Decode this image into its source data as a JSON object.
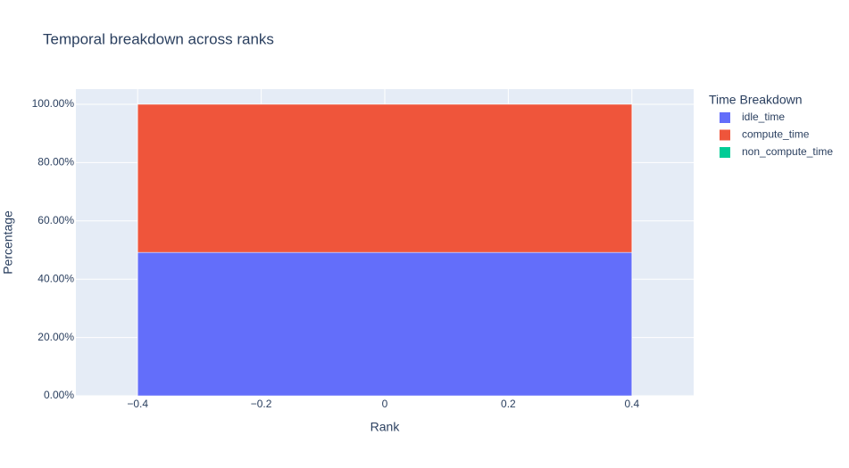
{
  "chart_data": {
    "type": "bar",
    "title": "Temporal breakdown across ranks",
    "x_label": "Rank",
    "y_label": "Percentage",
    "legend_title": "Time Breakdown",
    "legend_position": "right",
    "stacked": true,
    "grid": true,
    "x": [
      0
    ],
    "series": [
      {
        "name": "idle_time",
        "color": "#636efa",
        "values": [
          49.2
        ]
      },
      {
        "name": "compute_time",
        "color": "#ef553b",
        "values": [
          50.8
        ]
      },
      {
        "name": "non_compute_time",
        "color": "#00cc96",
        "values": [
          0
        ]
      }
    ],
    "xlim": [
      -0.5,
      0.5
    ],
    "xticks": [
      {
        "value": -0.4,
        "label": "−0.4"
      },
      {
        "value": -0.2,
        "label": "−0.2"
      },
      0,
      {
        "value": 0.2,
        "label": "0.2"
      },
      {
        "value": 0.4,
        "label": "0.4"
      }
    ],
    "ylim": [
      0,
      105.2
    ],
    "yticks": [
      {
        "value": 0,
        "label": "0.00%"
      },
      {
        "value": 20,
        "label": "20.00%"
      },
      {
        "value": 40,
        "label": "40.00%"
      },
      {
        "value": 60,
        "label": "60.00%"
      },
      {
        "value": 80,
        "label": "80.00%"
      },
      {
        "value": 100,
        "label": "100.00%"
      }
    ]
  }
}
